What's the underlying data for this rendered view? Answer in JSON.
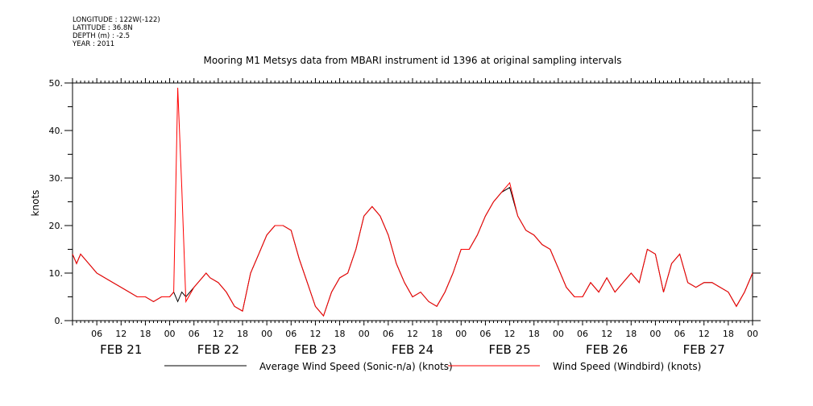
{
  "metadata": {
    "longitude": "LONGITUDE : 122W(-122)",
    "latitude": "LATITUDE : 36.8N",
    "depth": "DEPTH (m) : -2.5",
    "year": "YEAR : 2011"
  },
  "chart_data": {
    "type": "line",
    "title": "Mooring M1 Metsys data from MBARI instrument id 1396 at original sampling intervals",
    "ylabel": "knots",
    "xlabel": "",
    "ylim": [
      0,
      50
    ],
    "yticks": [
      0,
      10,
      20,
      30,
      40,
      50
    ],
    "ytick_labels": [
      "0.",
      "10.",
      "20.",
      "30.",
      "40.",
      "50."
    ],
    "xlim_hours": [
      0,
      168
    ],
    "x_hour_ticks": [
      6,
      12,
      18,
      24,
      30,
      36,
      42,
      48,
      54,
      60,
      66,
      72,
      78,
      84,
      90,
      96,
      102,
      108,
      114,
      120,
      126,
      132,
      138,
      144,
      150,
      156,
      162,
      168
    ],
    "x_hour_labels": [
      "06",
      "12",
      "18",
      "00",
      "06",
      "12",
      "18",
      "00",
      "06",
      "12",
      "18",
      "00",
      "06",
      "12",
      "18",
      "00",
      "06",
      "12",
      "18",
      "00",
      "06",
      "12",
      "18",
      "00",
      "06",
      "12",
      "18",
      "00"
    ],
    "day_labels": [
      "FEB 21",
      "FEB 22",
      "FEB 23",
      "FEB 24",
      "FEB 25",
      "FEB 26",
      "FEB 27"
    ],
    "grid": false,
    "legend_position": "bottom",
    "colors": {
      "average": "#000000",
      "windbird": "#ff0000",
      "axes": "#000000"
    },
    "series": [
      {
        "name": "Average Wind Speed (Sonic-n/a) (knots)",
        "color": "#000000",
        "x": [
          0,
          1,
          2,
          4,
          6,
          8,
          10,
          12,
          14,
          16,
          18,
          20,
          22,
          24,
          25,
          26,
          27,
          28,
          30,
          32,
          33,
          34,
          36,
          38,
          40,
          42,
          44,
          46,
          48,
          50,
          52,
          54,
          56,
          58,
          60,
          62,
          64,
          66,
          68,
          70,
          72,
          74,
          76,
          78,
          80,
          82,
          84,
          86,
          88,
          90,
          92,
          94,
          96,
          98,
          100,
          102,
          104,
          106,
          108,
          110,
          112,
          114,
          116,
          118,
          120,
          122,
          124,
          126,
          128,
          130,
          132,
          134,
          136,
          138,
          140,
          142,
          144,
          146,
          148,
          150,
          152,
          154,
          156,
          158,
          160,
          162,
          164,
          166,
          168
        ],
        "y": [
          14,
          12,
          14,
          12,
          10,
          9,
          8,
          7,
          6,
          5,
          5,
          4,
          5,
          5,
          6,
          4,
          6,
          5,
          7,
          9,
          10,
          9,
          8,
          6,
          3,
          2,
          10,
          14,
          18,
          20,
          20,
          19,
          13,
          8,
          3,
          1,
          6,
          9,
          10,
          15,
          22,
          24,
          22,
          18,
          12,
          8,
          5,
          6,
          4,
          3,
          6,
          10,
          15,
          15,
          18,
          22,
          25,
          27,
          28,
          22,
          19,
          18,
          16,
          15,
          11,
          7,
          5,
          5,
          8,
          6,
          9,
          6,
          8,
          10,
          8,
          15,
          14,
          6,
          12,
          14,
          8,
          7,
          8,
          8,
          7,
          6,
          3,
          6,
          10
        ]
      },
      {
        "name": "Wind Speed (Windbird) (knots)",
        "color": "#ff0000",
        "x": [
          0,
          1,
          2,
          4,
          6,
          8,
          10,
          12,
          14,
          16,
          18,
          20,
          22,
          24,
          25,
          26,
          27,
          28,
          30,
          32,
          33,
          34,
          36,
          38,
          40,
          42,
          44,
          46,
          48,
          50,
          52,
          54,
          56,
          58,
          60,
          62,
          64,
          66,
          68,
          70,
          72,
          74,
          76,
          78,
          80,
          82,
          84,
          86,
          88,
          90,
          92,
          94,
          96,
          98,
          100,
          102,
          104,
          106,
          108,
          110,
          112,
          114,
          116,
          118,
          120,
          122,
          124,
          126,
          128,
          130,
          132,
          134,
          136,
          138,
          140,
          142,
          144,
          146,
          148,
          150,
          152,
          154,
          156,
          158,
          160,
          162,
          164,
          166,
          168
        ],
        "y": [
          14,
          12,
          14,
          12,
          10,
          9,
          8,
          7,
          6,
          5,
          5,
          4,
          5,
          5,
          6,
          49,
          28,
          4,
          7,
          9,
          10,
          9,
          8,
          6,
          3,
          2,
          10,
          14,
          18,
          20,
          20,
          19,
          13,
          8,
          3,
          1,
          6,
          9,
          10,
          15,
          22,
          24,
          22,
          18,
          12,
          8,
          5,
          6,
          4,
          3,
          6,
          10,
          15,
          15,
          18,
          22,
          25,
          27,
          29,
          22,
          19,
          18,
          16,
          15,
          11,
          7,
          5,
          5,
          8,
          6,
          9,
          6,
          8,
          10,
          8,
          15,
          14,
          6,
          12,
          14,
          8,
          7,
          8,
          8,
          7,
          6,
          3,
          6,
          10
        ]
      }
    ]
  }
}
